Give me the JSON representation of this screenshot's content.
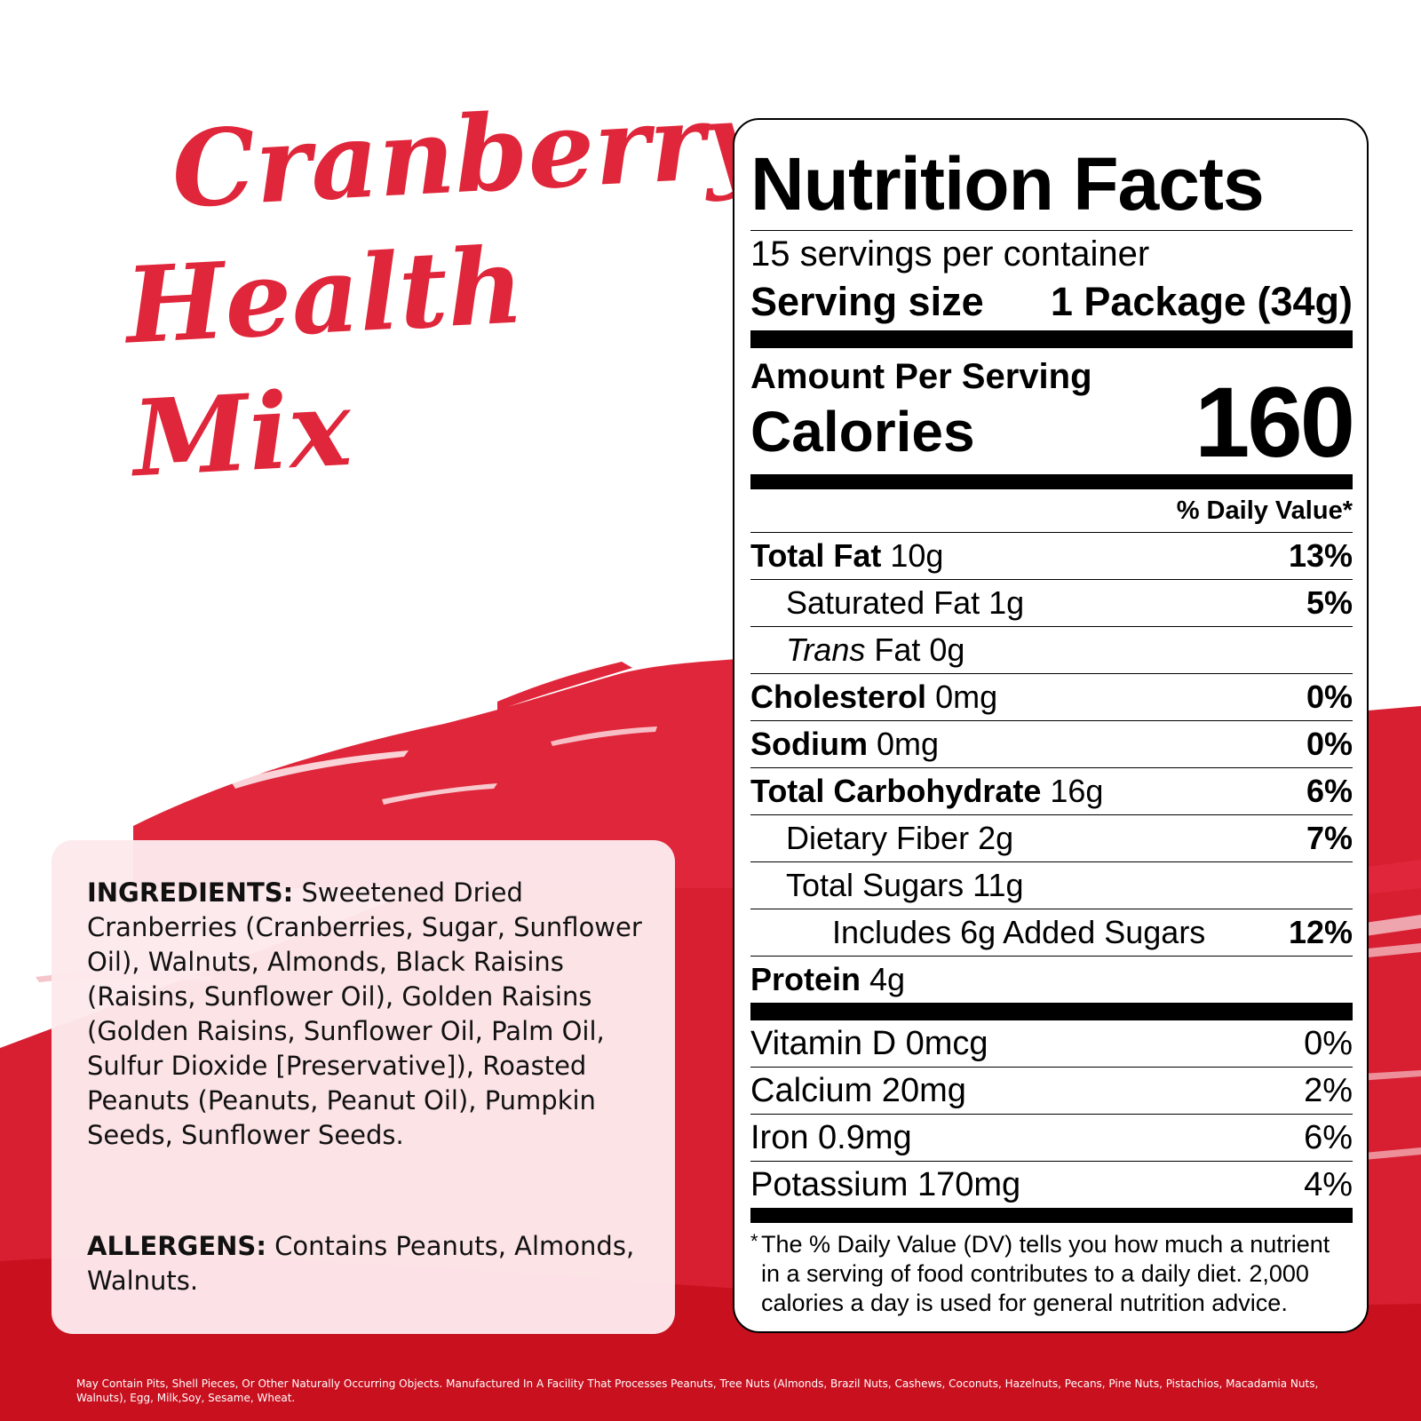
{
  "product": {
    "title_line1": "Cranberry",
    "title_line2": "Health Mix"
  },
  "ingredients": {
    "label": "INGREDIENTS:",
    "text": "Sweetened Dried Cranberries (Cranberries, Sugar, Sunflower Oil), Walnuts, Almonds, Black Raisins (Raisins, Sunflower Oil), Golden Raisins (Golden Raisins, Sunflower Oil, Palm Oil, Sulfur Dioxide [Preservative]), Roasted Peanuts (Peanuts, Peanut Oil), Pumpkin Seeds, Sunflower Seeds."
  },
  "allergens": {
    "label": "ALLERGENS:",
    "text": "Contains Peanuts, Almonds, Walnuts."
  },
  "nutrition": {
    "title": "Nutrition Facts",
    "servings_per_container": "15 servings per container",
    "serving_size_label": "Serving size",
    "serving_size_value": "1 Package (34g)",
    "amount_per_serving": "Amount Per Serving",
    "calories_label": "Calories",
    "calories_value": "160",
    "daily_value_header": "% Daily Value*",
    "rows": [
      {
        "name": "Total Fat",
        "amount": "10g",
        "dv": "13%"
      },
      {
        "name": "Saturated Fat",
        "amount": "1g",
        "dv": "5%"
      },
      {
        "name": "Trans",
        "amount": "Fat 0g",
        "dv": ""
      },
      {
        "name": "Cholesterol",
        "amount": "0mg",
        "dv": "0%"
      },
      {
        "name": "Sodium",
        "amount": "0mg",
        "dv": "0%"
      },
      {
        "name": "Total Carbohydrate",
        "amount": "16g",
        "dv": "6%"
      },
      {
        "name": "Dietary Fiber",
        "amount": "2g",
        "dv": "7%"
      },
      {
        "name": "Total Sugars",
        "amount": "11g",
        "dv": ""
      },
      {
        "name": "Includes 6g Added Sugars",
        "amount": "",
        "dv": "12%"
      },
      {
        "name": "Protein",
        "amount": "4g",
        "dv": ""
      }
    ],
    "vitamins": [
      {
        "name": "Vitamin D 0mcg",
        "dv": "0%"
      },
      {
        "name": "Calcium 20mg",
        "dv": "2%"
      },
      {
        "name": "Iron 0.9mg",
        "dv": "6%"
      },
      {
        "name": "Potassium 170mg",
        "dv": "4%"
      }
    ],
    "footnote_star": "*",
    "footnote": "The % Daily Value (DV) tells you how much a nutrient in a serving of food contributes to a daily diet. 2,000 calories a day is used for general nutrition advice."
  },
  "disclaimer": "May Contain Pits, Shell Pieces, Or Other Naturally Occurring Objects. Manufactured In A Facility That Processes Peanuts, Tree Nuts (Almonds, Brazil Nuts, Cashews, Coconuts, Hazelnuts, Pecans, Pine Nuts, Pistachios, Macadamia Nuts, Walnuts), Egg, Milk,Soy, Sesame, Wheat.",
  "colors": {
    "brand_red": "#e0263a",
    "dark_red": "#c8101f",
    "card_pink": "#fde9ec"
  }
}
